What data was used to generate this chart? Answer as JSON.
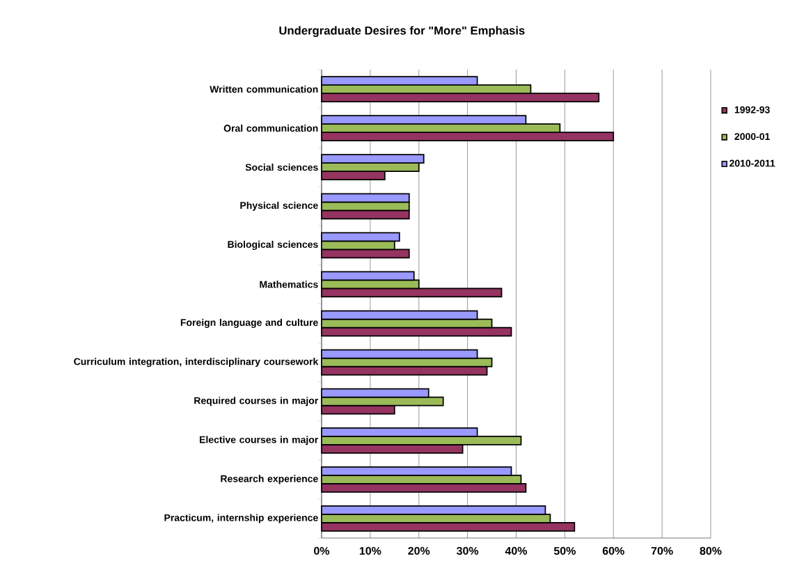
{
  "chart_data": {
    "type": "bar",
    "orientation": "horizontal",
    "title": "Undergraduate Desires for \"More\" Emphasis",
    "categories": [
      "Written communication",
      "Oral communication",
      "Social sciences",
      "Physical science",
      "Biological sciences",
      "Mathematics",
      "Foreign language and culture",
      "Curriculum integration, interdisciplinary coursework",
      "Required courses in major",
      "Elective courses in major",
      "Research experience",
      "Practicum, internship experience"
    ],
    "series": [
      {
        "name": "1992-93",
        "color": "#953361",
        "values": [
          57,
          60,
          13,
          18,
          18,
          37,
          39,
          34,
          15,
          29,
          42,
          52
        ]
      },
      {
        "name": "2000-01",
        "color": "#9bbb59",
        "values": [
          43,
          49,
          20,
          18,
          15,
          20,
          35,
          35,
          25,
          41,
          41,
          47
        ]
      },
      {
        "name": "2010-2011",
        "color": "#9999ff",
        "values": [
          32,
          42,
          21,
          18,
          16,
          19,
          32,
          32,
          22,
          32,
          39,
          46
        ]
      }
    ],
    "xlim": [
      0,
      80
    ],
    "xticks": [
      {
        "value": 0,
        "label": "0%"
      },
      {
        "value": 10,
        "label": "10%"
      },
      {
        "value": 20,
        "label": "20%"
      },
      {
        "value": 30,
        "label": "30%"
      },
      {
        "value": 40,
        "label": "40%"
      },
      {
        "value": 50,
        "label": "50%"
      },
      {
        "value": 60,
        "label": "60%"
      },
      {
        "value": 70,
        "label": "70%"
      },
      {
        "value": 80,
        "label": "80%"
      }
    ],
    "grid": "x",
    "legend": "right"
  }
}
